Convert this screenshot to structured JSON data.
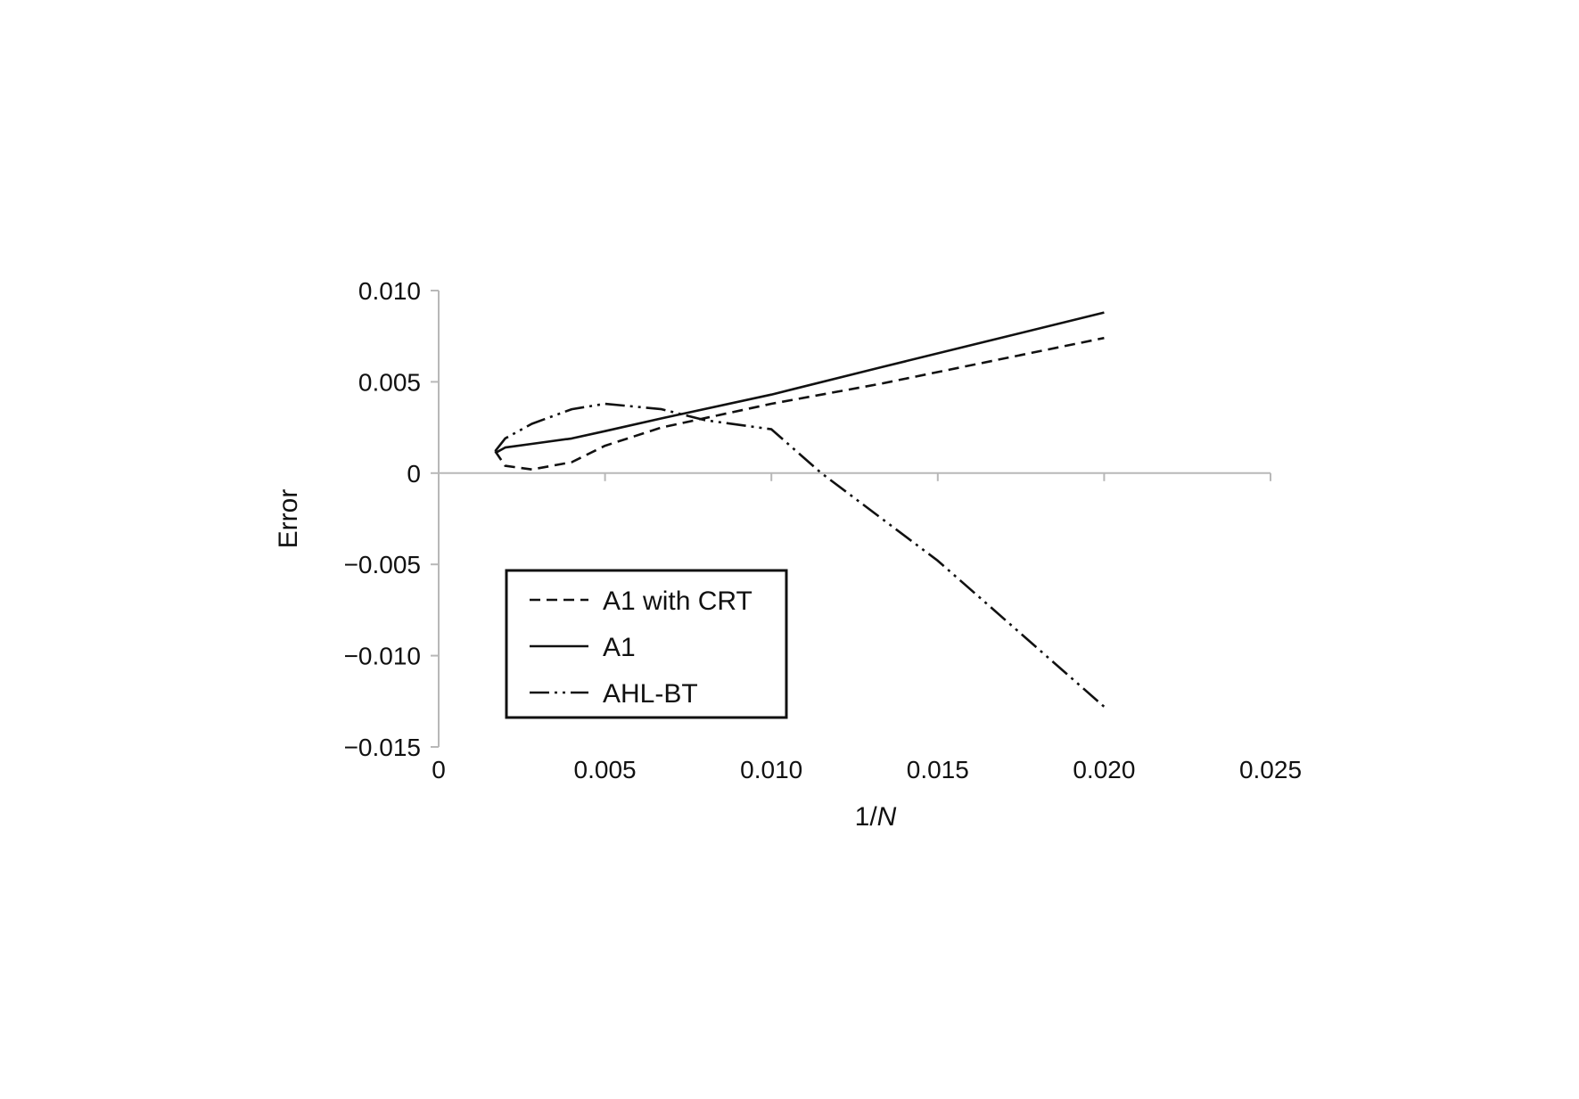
{
  "chart_data": {
    "type": "line",
    "title": "",
    "xlabel_main": "1/",
    "xlabel_var": "N",
    "ylabel": "Error",
    "xlim": [
      0,
      0.025
    ],
    "ylim": [
      -0.015,
      0.01
    ],
    "x_ticks": [
      {
        "value": 0,
        "label": "0"
      },
      {
        "value": 0.005,
        "label": "0.005"
      },
      {
        "value": 0.01,
        "label": "0.010"
      },
      {
        "value": 0.015,
        "label": "0.015"
      },
      {
        "value": 0.02,
        "label": "0.020"
      },
      {
        "value": 0.025,
        "label": "0.025"
      }
    ],
    "y_ticks": [
      {
        "value": 0.01,
        "label": "0.010"
      },
      {
        "value": 0.005,
        "label": "0.005"
      },
      {
        "value": 0,
        "label": "0"
      },
      {
        "value": -0.005,
        "label": "−0.005"
      },
      {
        "value": -0.01,
        "label": "−0.010"
      },
      {
        "value": -0.015,
        "label": "−0.015"
      }
    ],
    "grid": false,
    "legend_position": "lower-left",
    "series": [
      {
        "name": "A1 with CRT",
        "style": "dashed",
        "color": "#111111",
        "x": [
          0.0017,
          0.002,
          0.0028,
          0.004,
          0.005,
          0.0067,
          0.01,
          0.0133,
          0.02
        ],
        "y": [
          0.0012,
          0.0004,
          0.0002,
          0.0006,
          0.0015,
          0.0025,
          0.0038,
          0.0049,
          0.0074
        ]
      },
      {
        "name": "A1",
        "style": "solid",
        "color": "#111111",
        "x": [
          0.0017,
          0.002,
          0.0028,
          0.004,
          0.005,
          0.0067,
          0.01,
          0.0133,
          0.02
        ],
        "y": [
          0.0011,
          0.0014,
          0.0016,
          0.0019,
          0.0023,
          0.003,
          0.0043,
          0.0058,
          0.0088
        ]
      },
      {
        "name": "AHL-BT",
        "style": "dashdotdot",
        "color": "#111111",
        "x": [
          0.0017,
          0.002,
          0.0028,
          0.004,
          0.005,
          0.0067,
          0.008,
          0.01,
          0.0115,
          0.015,
          0.02
        ],
        "y": [
          0.0012,
          0.0019,
          0.0027,
          0.0035,
          0.0038,
          0.0035,
          0.0029,
          0.0024,
          0.0,
          -0.0048,
          -0.0128
        ]
      }
    ]
  }
}
